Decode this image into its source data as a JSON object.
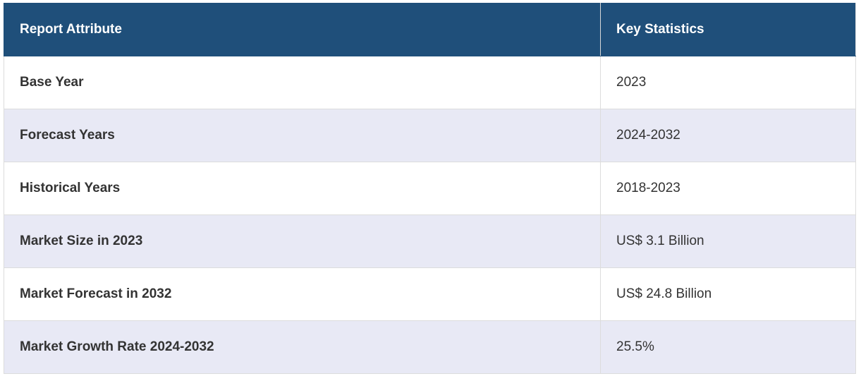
{
  "table": {
    "header": [
      "Report Attribute",
      "Key Statistics"
    ],
    "rows": [
      [
        "Base Year",
        "2023"
      ],
      [
        "Forecast Years",
        "2024-2032"
      ],
      [
        "Historical Years",
        "2018-2023"
      ],
      [
        "Market Size in 2023",
        "US$ 3.1 Billion"
      ],
      [
        "Market Forecast in 2032",
        "US$ 24.8 Billion"
      ],
      [
        "Market Growth Rate 2024-2032",
        "25.5%"
      ]
    ]
  }
}
